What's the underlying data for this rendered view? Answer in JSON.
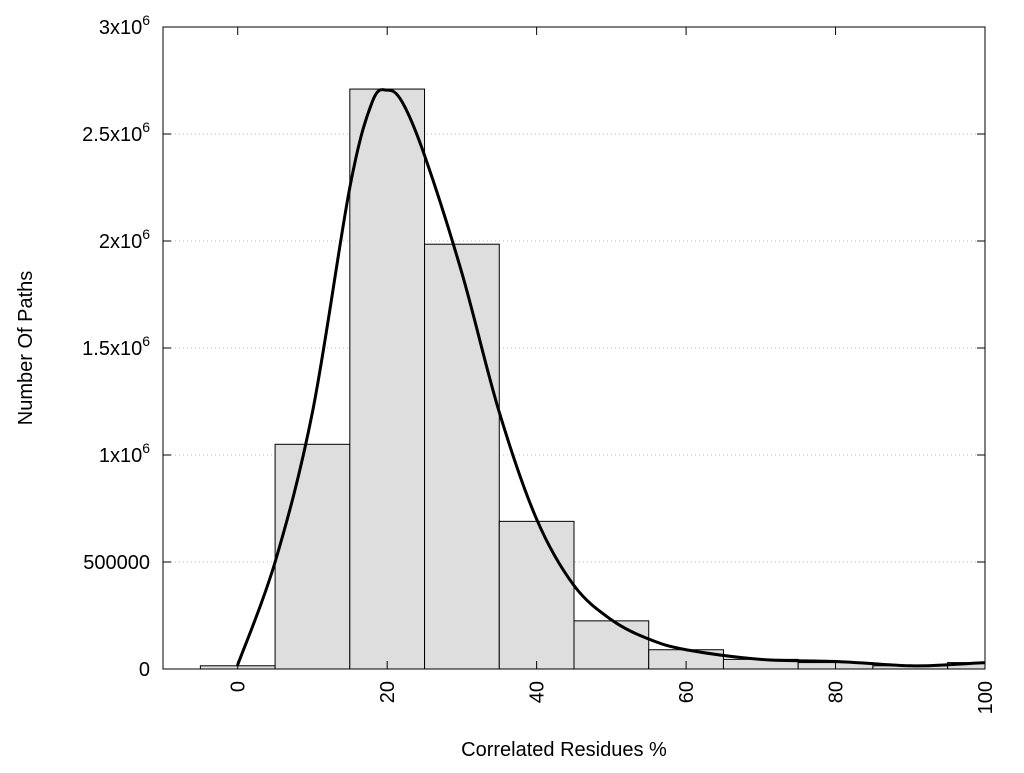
{
  "chart_data": {
    "type": "bar",
    "subtype": "histogram with smoothed density curve",
    "xlabel": "Correlated Residues %",
    "ylabel": "Number Of Paths",
    "xlim": [
      -10,
      100
    ],
    "ylim": [
      0,
      3000000
    ],
    "grid": "horizontal dotted",
    "legend": "none",
    "bar_fill": "#dedede",
    "bar_stroke": "#000000",
    "line_color": "#000000",
    "x_ticks": [
      {
        "value": 0,
        "label": "0"
      },
      {
        "value": 20,
        "label": "20"
      },
      {
        "value": 40,
        "label": "40"
      },
      {
        "value": 60,
        "label": "60"
      },
      {
        "value": 80,
        "label": "80"
      },
      {
        "value": 100,
        "label": "100"
      }
    ],
    "y_ticks": [
      {
        "value": 0,
        "base": "0",
        "exp": ""
      },
      {
        "value": 500000,
        "base": "500000",
        "exp": ""
      },
      {
        "value": 1000000,
        "base": "1x10",
        "exp": "6"
      },
      {
        "value": 1500000,
        "base": "1.5x10",
        "exp": "6"
      },
      {
        "value": 2000000,
        "base": "2x10",
        "exp": "6"
      },
      {
        "value": 2500000,
        "base": "2.5x10",
        "exp": "6"
      },
      {
        "value": 3000000,
        "base": "3x10",
        "exp": "6"
      }
    ],
    "bins": [
      {
        "x0": -5,
        "x1": 5,
        "value": 15000
      },
      {
        "x0": 5,
        "x1": 15,
        "value": 1050000
      },
      {
        "x0": 15,
        "x1": 25,
        "value": 2710000
      },
      {
        "x0": 25,
        "x1": 35,
        "value": 1985000
      },
      {
        "x0": 35,
        "x1": 45,
        "value": 690000
      },
      {
        "x0": 45,
        "x1": 55,
        "value": 225000
      },
      {
        "x0": 55,
        "x1": 65,
        "value": 90000
      },
      {
        "x0": 65,
        "x1": 75,
        "value": 45000
      },
      {
        "x0": 75,
        "x1": 85,
        "value": 30000
      },
      {
        "x0": 85,
        "x1": 95,
        "value": 15000
      },
      {
        "x0": 95,
        "x1": 105,
        "value": 30000
      }
    ],
    "curve": {
      "x": [
        0,
        5,
        10,
        15,
        18,
        20,
        22,
        25,
        30,
        35,
        40,
        45,
        50,
        55,
        60,
        70,
        80,
        90,
        95,
        100
      ],
      "y": [
        20000,
        500000,
        1200000,
        2250000,
        2650000,
        2705000,
        2650000,
        2400000,
        1850000,
        1200000,
        700000,
        390000,
        230000,
        140000,
        90000,
        45000,
        35000,
        15000,
        20000,
        30000
      ]
    }
  }
}
